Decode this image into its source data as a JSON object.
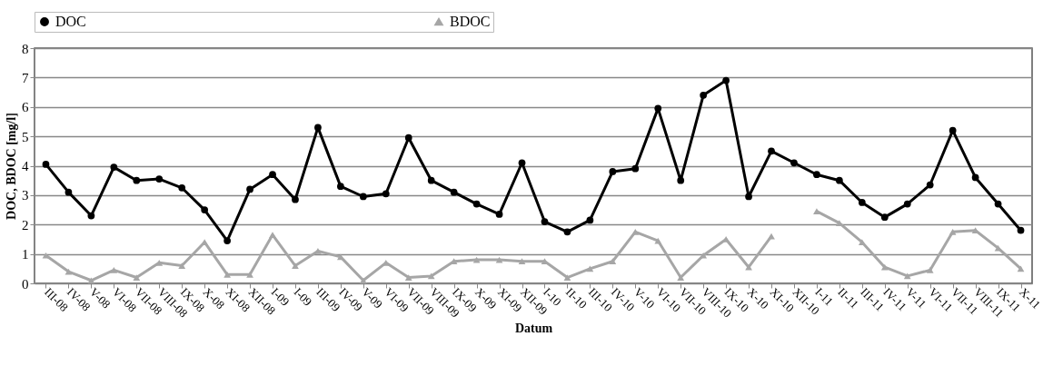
{
  "chart_data": {
    "type": "line",
    "xlabel": "Datum",
    "ylabel": "DOC, BDOC [mg/l]",
    "categories": [
      "III-08",
      "IV-08",
      "V-08",
      "VI-08",
      "VII-08",
      "VIII-08",
      "IX-08",
      "X-08",
      "XI-08",
      "XII-08",
      "I-09",
      "I-09",
      "III-09",
      "IV-09",
      "V-09",
      "VI-09",
      "VII-09",
      "VIII-09",
      "IX-09",
      "X-09",
      "XI-09",
      "XII-09",
      "I-10",
      "II-10",
      "III-10",
      "IV-10",
      "V-10",
      "VI-10",
      "VII-10",
      "VIII-10",
      "IX-10",
      "X-10",
      "XI-10",
      "XII-10",
      "I-11",
      "II-11",
      "III-11",
      "IV-11",
      "V-11",
      "VI-11",
      "VII-11",
      "VIII-11",
      "IX-11",
      "X-11"
    ],
    "series": [
      {
        "name": "DOC",
        "color": "#000000",
        "marker": "circle",
        "values": [
          4.05,
          3.1,
          2.3,
          3.95,
          3.5,
          3.55,
          3.25,
          2.5,
          1.45,
          3.2,
          3.7,
          2.85,
          5.3,
          3.3,
          2.95,
          3.05,
          4.95,
          3.5,
          3.1,
          2.7,
          2.35,
          4.1,
          2.1,
          1.75,
          2.15,
          3.8,
          3.9,
          5.95,
          3.5,
          6.4,
          6.9,
          2.95,
          4.5,
          4.1,
          3.7,
          3.5,
          2.75,
          2.25,
          2.7,
          3.35,
          5.2,
          3.6,
          2.7,
          1.8
        ]
      },
      {
        "name": "BDOC",
        "color": "#a6a6a6",
        "marker": "triangle",
        "values": [
          0.95,
          0.4,
          0.1,
          0.45,
          0.2,
          0.7,
          0.6,
          1.4,
          0.3,
          0.3,
          1.65,
          0.6,
          1.1,
          0.9,
          0.1,
          0.7,
          0.2,
          0.25,
          0.75,
          0.8,
          0.8,
          0.75,
          0.75,
          0.2,
          0.5,
          0.75,
          1.75,
          1.45,
          0.2,
          0.95,
          1.5,
          0.55,
          1.6,
          null,
          2.45,
          2.05,
          1.4,
          0.55,
          0.25,
          0.45,
          1.75,
          1.8,
          1.2,
          0.5
        ]
      }
    ],
    "ylim": [
      0,
      8
    ],
    "yticks": [
      0,
      1,
      2,
      3,
      4,
      5,
      6,
      7,
      8
    ],
    "grid": "y",
    "legend": "top"
  }
}
